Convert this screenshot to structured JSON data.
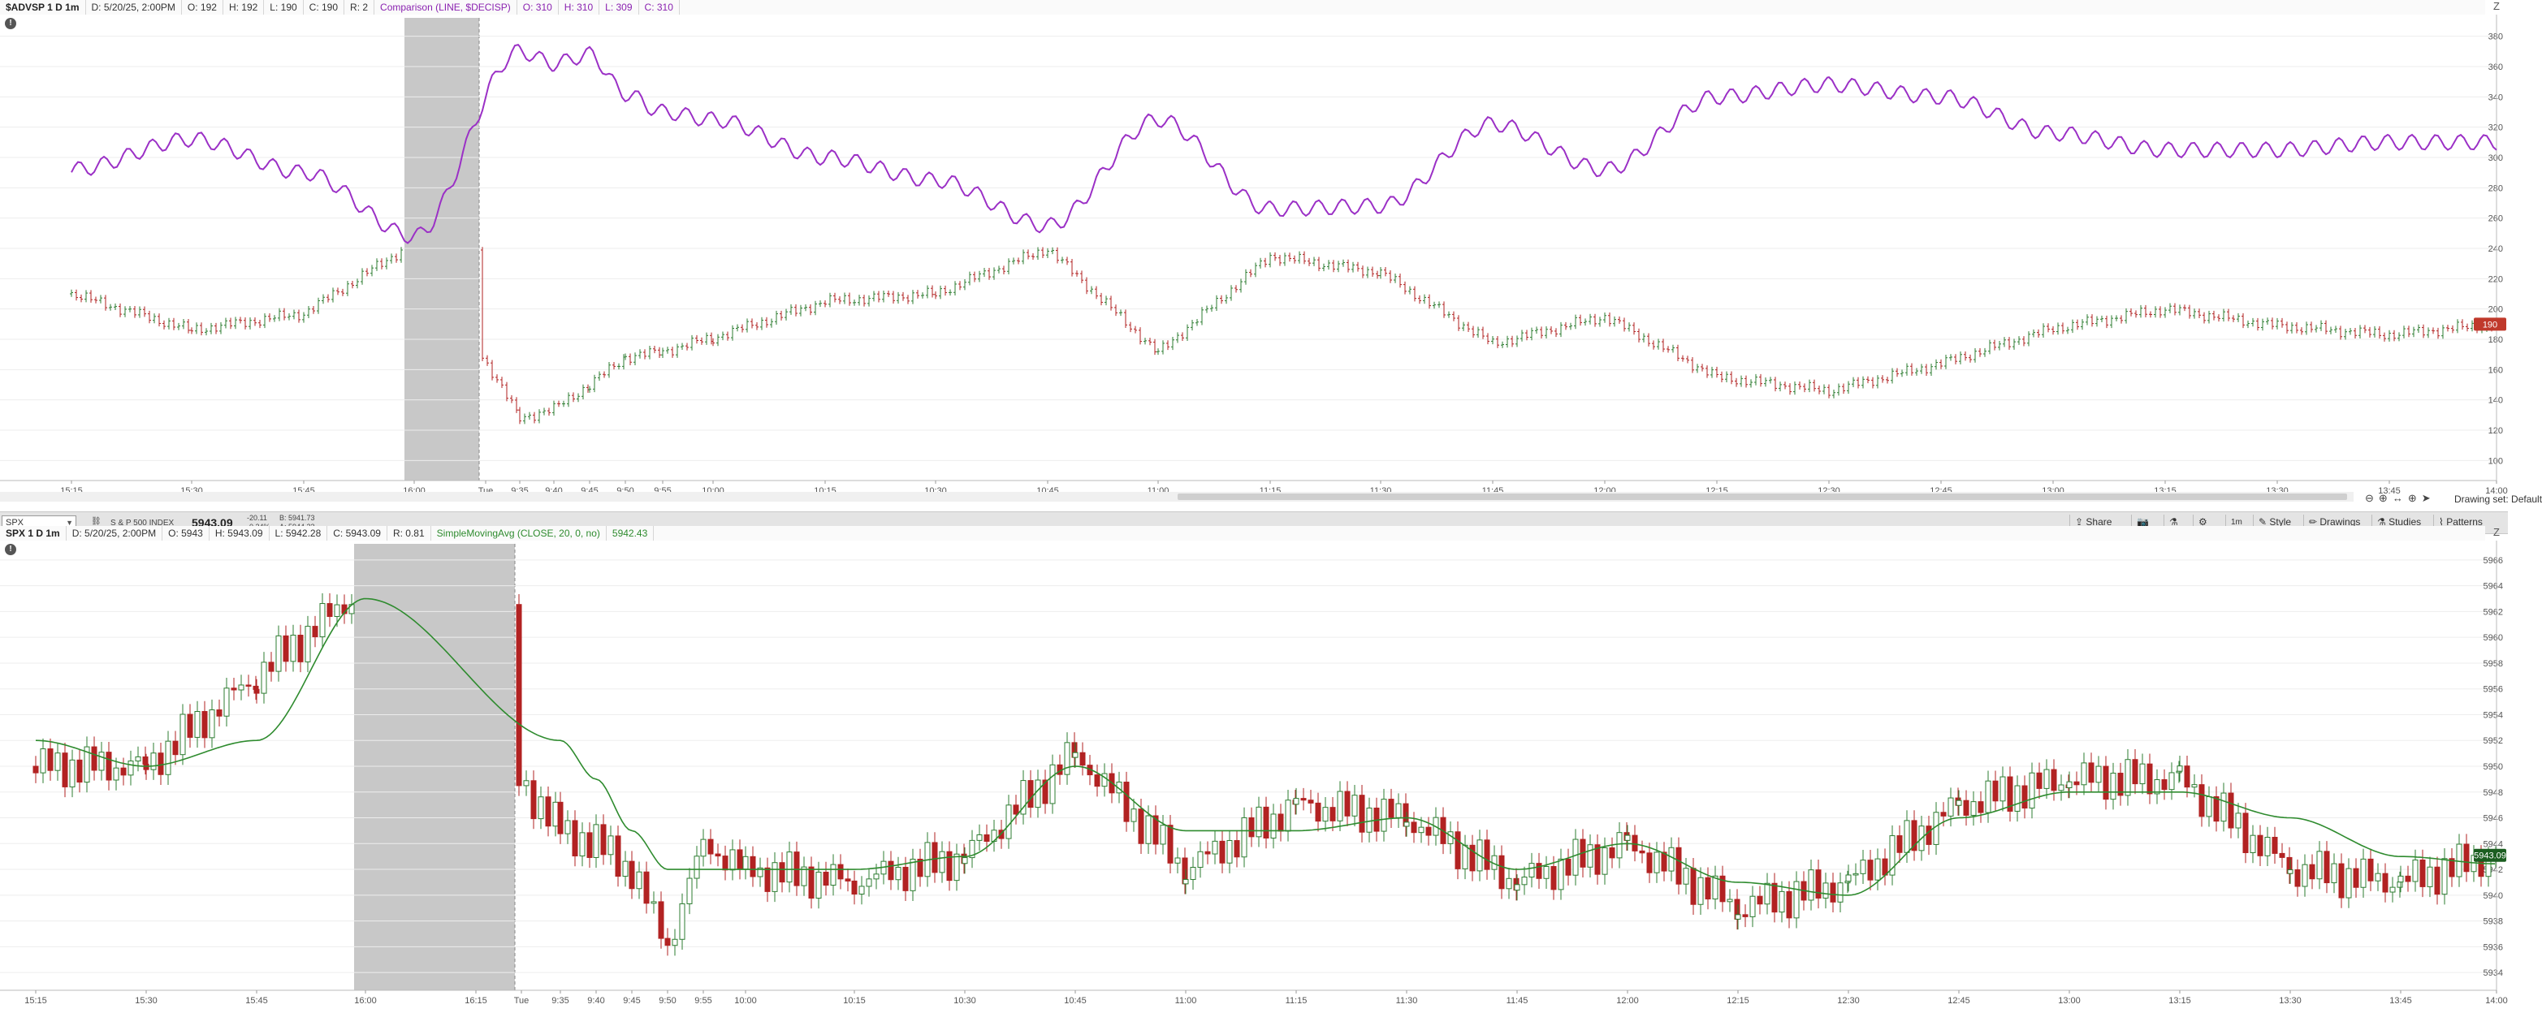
{
  "upper_panel": {
    "info": {
      "symbol": "$ADVSP 1 D 1m",
      "date": "D: 5/20/25, 2:00PM",
      "open": "O: 192",
      "high": "H: 192",
      "low": "L: 190",
      "close": "C: 190",
      "range": "R: 2",
      "comparison": "Comparison (LINE, $DECISP)",
      "cmp_open": "O: 310",
      "cmp_high": "H: 310",
      "cmp_low": "L: 309",
      "cmp_close": "C: 310"
    },
    "price_axis_ticks": [
      "380",
      "360",
      "340",
      "320",
      "300",
      "280",
      "260",
      "240",
      "220",
      "200",
      "180",
      "160",
      "140",
      "120",
      "100"
    ],
    "last_price_badge": "190",
    "time_axis_ticks": [
      "15:15",
      "15:30",
      "15:45",
      "16:00",
      "Tue",
      "9:35",
      "9:40",
      "9:45",
      "9:50",
      "9:55",
      "10:00",
      "10:15",
      "10:30",
      "10:45",
      "11:00",
      "11:15",
      "11:30",
      "11:45",
      "12:00",
      "12:15",
      "12:30",
      "12:45",
      "13:00",
      "13:15",
      "13:30",
      "13:45",
      "14:00"
    ]
  },
  "lower_panel": {
    "info": {
      "symbol": "SPX 1 D 1m",
      "date": "D: 5/20/25, 2:00PM",
      "open": "O: 5943",
      "high": "H: 5943.09",
      "low": "L: 5942.28",
      "close": "C: 5943.09",
      "range": "R: 0.81",
      "study": "SimpleMovingAvg (CLOSE, 20, 0, no)",
      "study_value": "5942.43"
    },
    "price_axis_ticks": [
      "5966",
      "5964",
      "5962",
      "5960",
      "5958",
      "5956",
      "5954",
      "5952",
      "5950",
      "5948",
      "5946",
      "5944",
      "5942",
      "5940",
      "5938",
      "5936",
      "5934"
    ],
    "last_price_badge": "5943.09",
    "time_axis_ticks": [
      "15:15",
      "15:30",
      "15:45",
      "16:00",
      "16:15",
      "Tue",
      "9:35",
      "9:40",
      "9:45",
      "9:50",
      "9:55",
      "10:00",
      "10:15",
      "10:30",
      "10:45",
      "11:00",
      "11:15",
      "11:30",
      "11:45",
      "12:00",
      "12:15",
      "12:30",
      "12:45",
      "13:00",
      "13:15",
      "13:30",
      "13:45",
      "14:00"
    ]
  },
  "toolbar": {
    "symbol_input": "SPX",
    "instrument_name": "S & P 500 INDEX",
    "last_price": "5943.09",
    "change_top": "-20.11",
    "change_bottom": "-0.34%",
    "bid": "B: 5941.73",
    "ask": "A: 5944.23",
    "share_label": "Share",
    "style_label": "Style",
    "drawings_label": "Drawings",
    "studies_label": "Studies",
    "patterns_label": "Patterns",
    "timeframe_label": "1m"
  },
  "drawing_set_label": "Drawing set: Default",
  "colors": {
    "up_candle": "#2e7d32",
    "down_candle": "#b22222",
    "comparison_line": "#9b30c6",
    "sma_line": "#2e8b2e",
    "session_gap": "#c8c8c8",
    "badge_red": "#c0392b",
    "badge_green": "#1b5e20"
  },
  "chart_data": [
    {
      "type": "line",
      "title": "$ADVSP 1 D 1m",
      "ylim": [
        90,
        390
      ],
      "series": [
        {
          "name": "$ADVSP",
          "style": "bars",
          "x": [
            "15:15",
            "15:30",
            "15:45",
            "16:00",
            "9:35",
            "9:40",
            "9:45",
            "9:50",
            "9:55",
            "10:00",
            "10:15",
            "10:30",
            "10:45",
            "11:00",
            "11:15",
            "11:30",
            "11:45",
            "12:00",
            "12:15",
            "12:30",
            "12:45",
            "13:00",
            "13:15",
            "13:30",
            "13:45",
            "14:00"
          ],
          "values": [
            210,
            186,
            197,
            244,
            128,
            134,
            150,
            168,
            172,
            181,
            205,
            210,
            240,
            171,
            235,
            224,
            177,
            195,
            155,
            146,
            164,
            187,
            200,
            189,
            183,
            190
          ]
        },
        {
          "name": "Comparison (LINE, $DECISP)",
          "style": "line",
          "x": [
            "15:15",
            "15:30",
            "15:45",
            "16:00",
            "9:35",
            "9:40",
            "9:45",
            "9:50",
            "9:55",
            "10:00",
            "10:15",
            "10:30",
            "10:45",
            "11:00",
            "11:15",
            "11:30",
            "11:45",
            "12:00",
            "12:15",
            "12:30",
            "12:45",
            "13:00",
            "13:15",
            "13:30",
            "13:45",
            "14:00"
          ],
          "values": [
            292,
            312,
            290,
            248,
            370,
            362,
            368,
            342,
            330,
            325,
            300,
            285,
            255,
            325,
            266,
            268,
            322,
            292,
            340,
            348,
            340,
            316,
            305,
            305,
            310,
            310
          ]
        }
      ]
    },
    {
      "type": "line",
      "title": "SPX 1 D 1m",
      "ylim": [
        5933,
        5967
      ],
      "series": [
        {
          "name": "SPX",
          "style": "candles",
          "x": [
            "15:15",
            "15:30",
            "15:45",
            "16:00",
            "9:35",
            "9:40",
            "9:45",
            "9:50",
            "9:55",
            "10:00",
            "10:15",
            "10:30",
            "10:45",
            "11:00",
            "11:15",
            "11:30",
            "11:45",
            "12:00",
            "12:15",
            "12:30",
            "12:45",
            "13:00",
            "13:15",
            "13:30",
            "13:45",
            "14:00"
          ],
          "values": [
            5950,
            5950,
            5957,
            5964,
            5945,
            5944,
            5942,
            5936,
            5944,
            5942,
            5941,
            5943,
            5951,
            5942,
            5947,
            5946,
            5941,
            5944,
            5939,
            5941,
            5947,
            5949,
            5949,
            5942,
            5941,
            5943.09
          ]
        },
        {
          "name": "SimpleMovingAvg (CLOSE, 20, 0, no)",
          "style": "line",
          "x": [
            "15:15",
            "15:30",
            "15:45",
            "16:00",
            "9:35",
            "9:40",
            "9:45",
            "9:50",
            "9:55",
            "10:00",
            "10:15",
            "10:30",
            "10:45",
            "11:00",
            "11:15",
            "11:30",
            "11:45",
            "12:00",
            "12:15",
            "12:30",
            "12:45",
            "13:00",
            "13:15",
            "13:30",
            "13:45",
            "14:00"
          ],
          "values": [
            5952,
            5950,
            5952,
            5963,
            5952,
            5949,
            5945,
            5942,
            5942,
            5942,
            5942,
            5943,
            5950,
            5945,
            5945,
            5946,
            5942,
            5944,
            5941,
            5940,
            5946,
            5948,
            5948,
            5946,
            5943,
            5942.43
          ]
        }
      ]
    }
  ]
}
